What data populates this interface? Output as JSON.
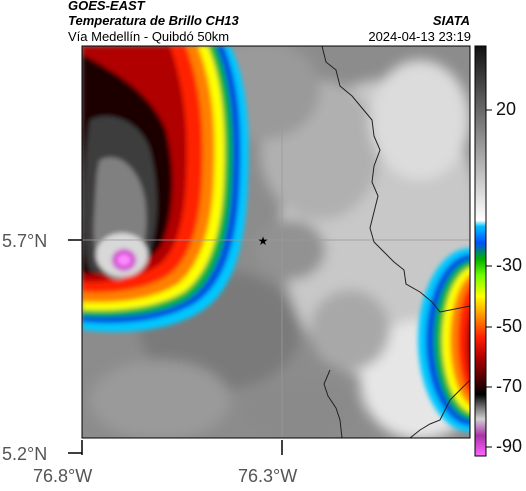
{
  "header": {
    "satellite": "GOES-EAST",
    "product": "Temperatura de Brillo CH13",
    "region": "Vía Medellín - Quibdó 50km",
    "agency": "SIATA",
    "timestamp": "2024-04-13 23:19"
  },
  "map": {
    "lat_labels": [
      "5.7°N",
      "5.2°N"
    ],
    "lon_labels": [
      "76.8°W",
      "76.3°W"
    ],
    "marker": "star-icon",
    "colors": {
      "frame": "#000000",
      "gridline": "#9a9a9a",
      "border_line": "#222222"
    }
  },
  "colorbar": {
    "ticks": [
      "20",
      "-30",
      "-50",
      "-70",
      "-90"
    ],
    "colors": [
      "#ff66ff",
      "#aa33aa",
      "#d0d0d0",
      "#707070",
      "#000000",
      "#500000",
      "#b00000",
      "#ff2000",
      "#ff9000",
      "#ffff00",
      "#70ff00",
      "#00b000",
      "#0050ff",
      "#00c0ff",
      "#ffffff",
      "#111111"
    ]
  }
}
